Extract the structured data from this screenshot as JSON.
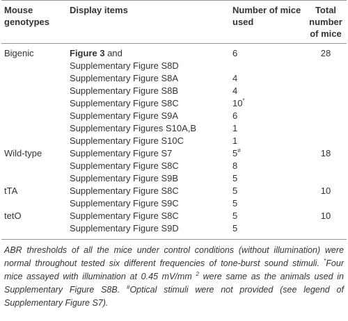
{
  "table": {
    "header": [
      "Mouse genotypes",
      "Display items",
      "Number of mice used",
      "Total number of mice"
    ],
    "groups": [
      {
        "genotype": "Bigenic",
        "total": 28,
        "items": [
          {
            "display_parts": [
              "Figure 3",
              "and",
              "Supplementary Figure S8D"
            ],
            "count": 6
          },
          {
            "display": "Supplementary Figure S8A",
            "count": 4
          },
          {
            "display": "Supplementary Figure S8B",
            "count": 4
          },
          {
            "display": "Supplementary Figure S8C",
            "count": 10,
            "mark": "*"
          },
          {
            "display": "Supplementary Figure S9A",
            "count": 6
          },
          {
            "display": "Supplementary Figures S10A,B",
            "count": 1
          },
          {
            "display": "Supplementary Figure S10C",
            "count": 1
          }
        ]
      },
      {
        "genotype": "Wild-type",
        "total": 18,
        "items": [
          {
            "display": "Supplementary Figure S7",
            "count": 5,
            "mark": "#"
          },
          {
            "display": "Supplementary Figure S8C",
            "count": 8
          },
          {
            "display": "Supplementary Figure S9B",
            "count": 5
          }
        ]
      },
      {
        "genotype": "tTA",
        "total": 10,
        "items": [
          {
            "display": "Supplementary Figure S8C",
            "count": 5
          },
          {
            "display": "Supplementary Figure S9C",
            "count": 5
          }
        ]
      },
      {
        "genotype": "tetO",
        "total": 10,
        "items": [
          {
            "display": "Supplementary Figure S8C",
            "count": 5
          },
          {
            "display": "Supplementary Figure S9D",
            "count": 5
          }
        ]
      }
    ]
  },
  "footnote": {
    "text": "ABR thresholds of all the mice under control conditions (without illumination) were normal throughout tested six different frequencies of tone-burst sound stimuli.",
    "notes": [
      {
        "mark": "*",
        "text": "Four mice assayed with illumination at 0.45 mV/mm",
        "sup": "2",
        "rest": "were same as the animals used in Supplementary Figure S8B."
      },
      {
        "mark": "#",
        "text": "Optical stimuli were not provided (see legend of Supplementary Figure S7)."
      }
    ]
  }
}
